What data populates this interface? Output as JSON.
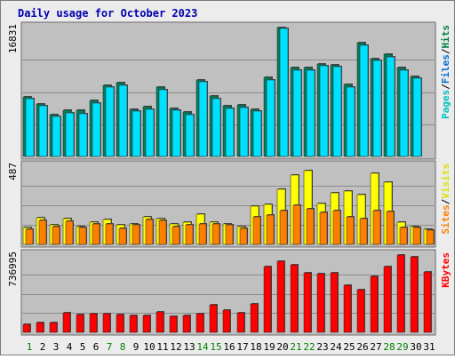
{
  "chart_data": [
    {
      "type": "bar",
      "title": "Daily usage for October 2023",
      "panel": "pages-files-hits",
      "ymax_label": "16831",
      "ylim": [
        0,
        16831
      ],
      "legend": [
        {
          "text": "Pages",
          "color": "#00c0c0"
        },
        {
          "text": "Files",
          "color": "#0070d0"
        },
        {
          "text": "Hits",
          "color": "#008040"
        }
      ],
      "categories": [
        "1",
        "2",
        "3",
        "4",
        "5",
        "6",
        "7",
        "8",
        "9",
        "10",
        "11",
        "12",
        "13",
        "14",
        "15",
        "16",
        "17",
        "18",
        "19",
        "20",
        "21",
        "22",
        "23",
        "24",
        "25",
        "26",
        "27",
        "28",
        "29",
        "30",
        "31"
      ],
      "series": [
        {
          "name": "Hits",
          "color": "#008060",
          "values": [
            7800,
            6900,
            5500,
            6000,
            6000,
            7300,
            9300,
            9600,
            6200,
            6500,
            9000,
            6300,
            5800,
            10000,
            7900,
            6600,
            6700,
            6200,
            10300,
            17000,
            11600,
            11600,
            12100,
            12000,
            9400,
            14800,
            12800,
            13300,
            11600,
            10500,
            0
          ]
        },
        {
          "name": "Files",
          "color": "#00e0ff",
          "values": [
            7500,
            6600,
            5200,
            5700,
            5600,
            7000,
            9000,
            9300,
            5900,
            6200,
            8700,
            6000,
            5500,
            9700,
            7600,
            6300,
            6400,
            5900,
            10000,
            16700,
            11300,
            11300,
            11800,
            11700,
            9100,
            14500,
            12500,
            13000,
            11300,
            10200,
            0
          ]
        }
      ]
    },
    {
      "type": "bar",
      "panel": "visits-sites",
      "ymax_label": "487",
      "ylim": [
        0,
        487
      ],
      "legend": [
        {
          "text": "Sites",
          "color": "#ff8000"
        },
        {
          "text": "Visits",
          "color": "#e0e000"
        }
      ],
      "categories": [
        "1",
        "2",
        "3",
        "4",
        "5",
        "6",
        "7",
        "8",
        "9",
        "10",
        "11",
        "12",
        "13",
        "14",
        "15",
        "16",
        "17",
        "18",
        "19",
        "20",
        "21",
        "22",
        "23",
        "24",
        "25",
        "26",
        "27",
        "28",
        "29",
        "30",
        "31"
      ],
      "series": [
        {
          "name": "Visits",
          "color": "#ffff00",
          "values": [
            105,
            168,
            120,
            160,
            112,
            137,
            155,
            120,
            127,
            170,
            160,
            125,
            137,
            190,
            140,
            125,
            110,
            237,
            250,
            345,
            430,
            460,
            255,
            320,
            330,
            310,
            445,
            385,
            137,
            110,
            95
          ]
        },
        {
          "name": "Sites",
          "color": "#ff8000",
          "values": [
            95,
            150,
            112,
            145,
            105,
            125,
            130,
            100,
            120,
            155,
            150,
            110,
            120,
            125,
            125,
            120,
            100,
            170,
            185,
            210,
            245,
            220,
            200,
            210,
            170,
            160,
            210,
            205,
            105,
            105,
            90
          ]
        }
      ]
    },
    {
      "type": "bar",
      "panel": "kbytes",
      "ymax_label": "736995",
      "ylim": [
        0,
        736995
      ],
      "legend": [
        {
          "text": "KBytes",
          "color": "#ff0000"
        }
      ],
      "categories": [
        "1",
        "2",
        "3",
        "4",
        "5",
        "6",
        "7",
        "8",
        "9",
        "10",
        "11",
        "12",
        "13",
        "14",
        "15",
        "16",
        "17",
        "18",
        "19",
        "20",
        "21",
        "22",
        "23",
        "24",
        "25",
        "26",
        "27",
        "28",
        "29",
        "30",
        "31"
      ],
      "series": [
        {
          "name": "KBytes",
          "color": "#ff0000",
          "values": [
            80000,
            90000,
            95000,
            190000,
            170000,
            175000,
            175000,
            170000,
            160000,
            165000,
            195000,
            155000,
            165000,
            175000,
            260000,
            210000,
            190000,
            270000,
            630000,
            680000,
            640000,
            565000,
            560000,
            570000,
            450000,
            410000,
            530000,
            630000,
            760000,
            720000,
            580000
          ]
        }
      ]
    }
  ]
}
